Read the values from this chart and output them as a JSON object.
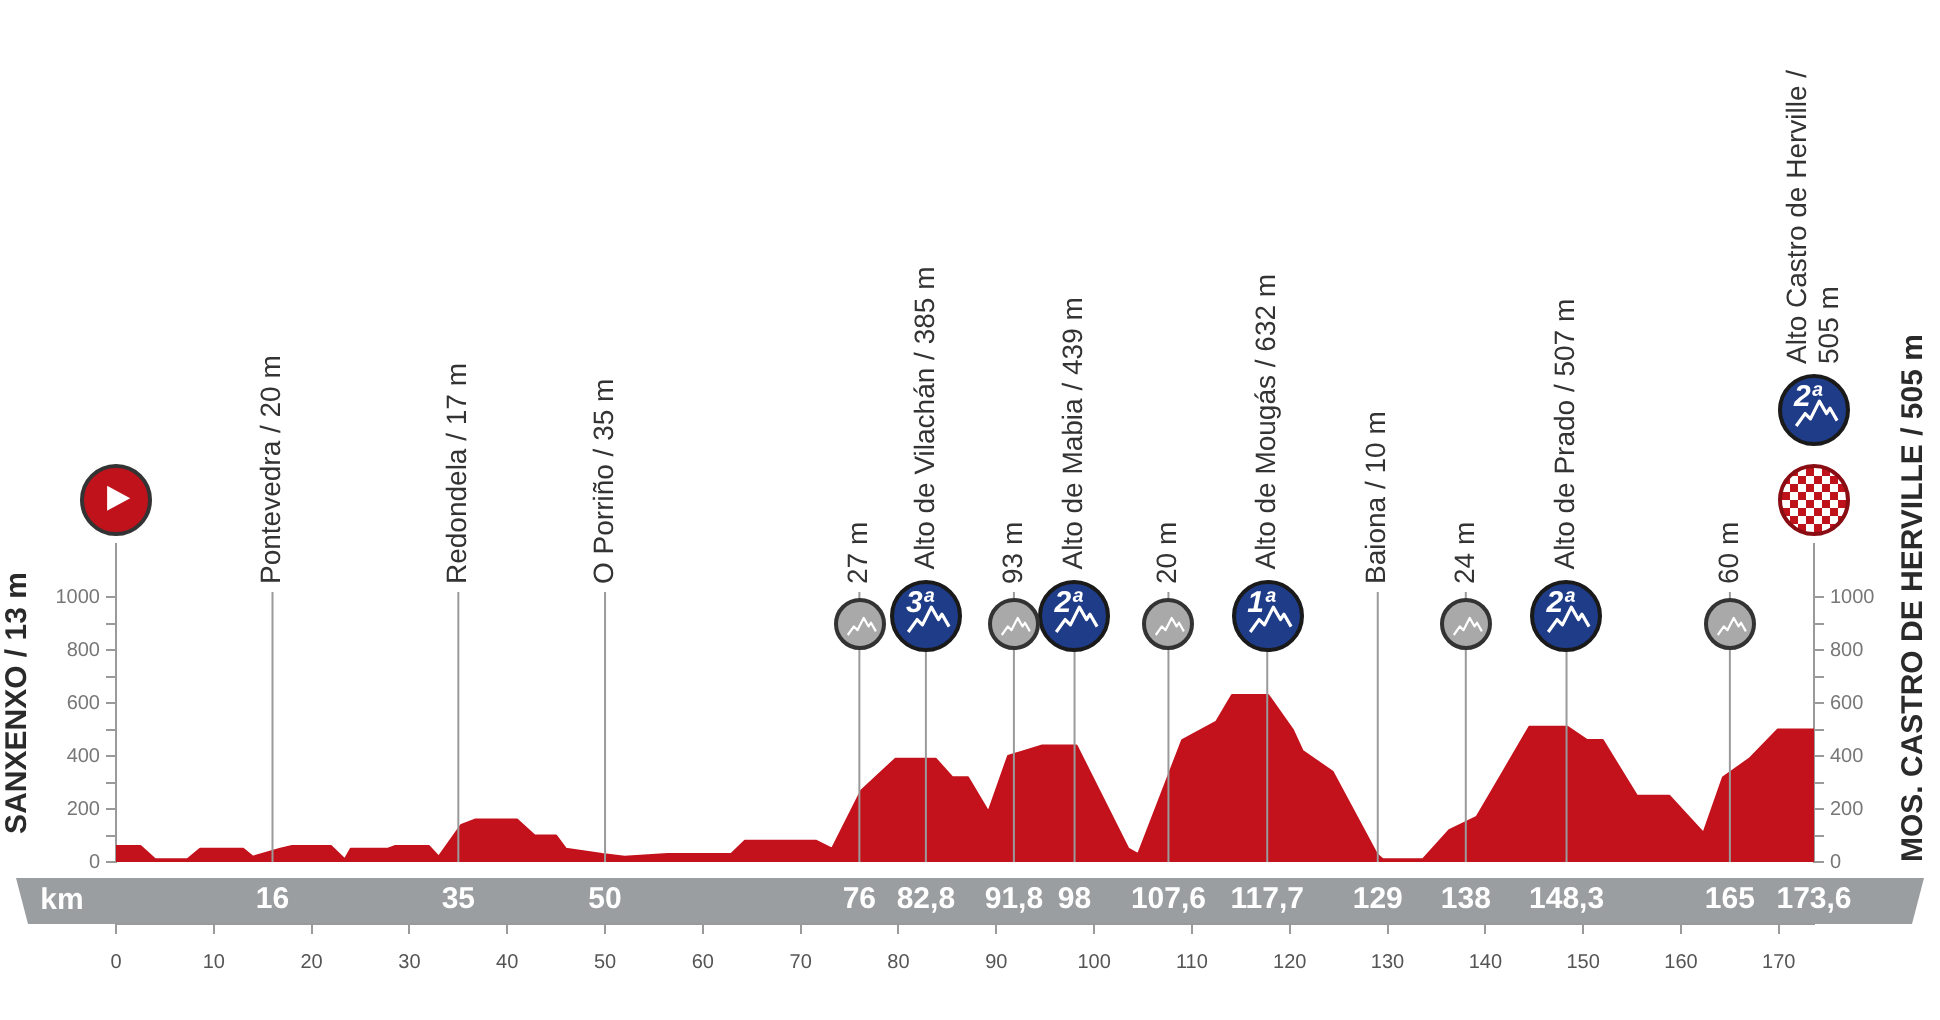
{
  "chart_data": {
    "type": "area",
    "color": "#c3121c",
    "x": [
      0,
      2.5,
      4,
      7.3,
      8.6,
      13,
      14,
      16.8,
      18,
      22,
      23.4,
      24,
      27.8,
      28.5,
      32,
      33,
      35.3,
      36.7,
      41,
      42.8,
      45,
      46,
      49.7,
      52,
      56.4,
      62.9,
      64.3,
      68.2,
      71.6,
      73.2,
      76.2,
      79.7,
      83.8,
      85.5,
      87.1,
      89.2,
      91.2,
      94.7,
      98.2,
      103.5,
      104.5,
      109,
      112.5,
      114.1,
      117.8,
      120.3,
      121.3,
      124.4,
      128.9,
      129.5,
      133.6,
      136.3,
      139.1,
      141.8,
      144.5,
      148.4,
      150.4,
      152,
      155.5,
      158.8,
      162.3,
      164.3,
      167,
      169.9,
      173.6
    ],
    "values": [
      60,
      60,
      10,
      10,
      50,
      50,
      20,
      50,
      60,
      60,
      10,
      50,
      50,
      60,
      60,
      20,
      140,
      160,
      160,
      100,
      100,
      50,
      30,
      20,
      30,
      30,
      80,
      80,
      80,
      50,
      270,
      390,
      390,
      320,
      320,
      190,
      400,
      440,
      440,
      50,
      30,
      460,
      530,
      630,
      630,
      500,
      420,
      340,
      30,
      10,
      10,
      120,
      170,
      340,
      510,
      510,
      460,
      460,
      250,
      250,
      110,
      320,
      390,
      500,
      500
    ],
    "ylabel": "SANXENXO / 13 m",
    "y2label": "MOS. CASTRO DE HERVILLE / 505 m",
    "x2label": "km",
    "xlim": [
      0,
      173.6
    ],
    "xticks": [
      0,
      10,
      20,
      30,
      40,
      50,
      60,
      70,
      80,
      90,
      100,
      110,
      120,
      130,
      140,
      150,
      160,
      170
    ],
    "x2lim": [
      0,
      173.6
    ],
    "x2ticks": [
      16,
      35,
      50,
      76,
      {
        "value": 82.8,
        "label": "82,8"
      },
      {
        "value": 91.8,
        "label": "91,8"
      },
      98,
      {
        "value": 107.6,
        "label": "107,6"
      },
      {
        "value": 117.7,
        "label": "117,7"
      },
      129,
      138,
      {
        "value": 148.3,
        "label": "148,3"
      },
      165,
      {
        "value": 173.6,
        "label": "173,6"
      }
    ],
    "ylim": [
      0,
      1200
    ],
    "yticks": [
      0,
      {
        "value": 100,
        "label": null
      },
      200,
      {
        "value": 300,
        "label": null
      },
      400,
      {
        "value": 500,
        "label": null
      },
      600,
      {
        "value": 700,
        "label": null
      },
      800,
      {
        "value": 900,
        "label": null
      },
      1000
    ],
    "y2lim": [
      0,
      1200
    ],
    "y2ticks": [
      0,
      {
        "value": 100,
        "label": null
      },
      200,
      {
        "value": 300,
        "label": null
      },
      400,
      {
        "value": 500,
        "label": null
      },
      600,
      {
        "value": 700,
        "label": null
      },
      800,
      {
        "value": 900,
        "label": null
      },
      1000
    ],
    "ref_lines": [
      {
        "axis": "x",
        "value": 16,
        "label": "Pontevedra / 20 m",
        "color": "#9a9a9a"
      },
      {
        "axis": "x",
        "value": 35,
        "label": "Redondela / 17 m",
        "color": "#9a9a9a"
      },
      {
        "axis": "x",
        "value": 50,
        "label": "O Porriño / 35 m",
        "color": "#9a9a9a"
      },
      {
        "axis": "x",
        "value": 76,
        "label": "27 m",
        "color": "#9a9a9a"
      },
      {
        "axis": "x",
        "value": 82.8,
        "label": "Alto de Vilachán / 385 m",
        "color": "#9a9a9a"
      },
      {
        "axis": "x",
        "value": 91.8,
        "label": "93 m",
        "color": "#9a9a9a"
      },
      {
        "axis": "x",
        "value": 98,
        "label": "Alto de Mabia / 439 m",
        "color": "#9a9a9a"
      },
      {
        "axis": "x",
        "value": 107.6,
        "label": "20 m",
        "color": "#9a9a9a"
      },
      {
        "axis": "x",
        "value": 117.7,
        "label": "Alto de Mougás / 632 m",
        "color": "#9a9a9a"
      },
      {
        "axis": "x",
        "value": 129,
        "label": "Baiona / 10 m",
        "color": "#9a9a9a"
      },
      {
        "axis": "x",
        "value": 138,
        "label": "24 m",
        "color": "#9a9a9a"
      },
      {
        "axis": "x",
        "value": 148.3,
        "label": "Alto de Prado / 507 m",
        "color": "#9a9a9a"
      },
      {
        "axis": "x",
        "value": 165,
        "label": "60 m",
        "color": "#9a9a9a"
      }
    ],
    "annotations": [
      {
        "text": "3ª",
        "x": 82.8,
        "y": 930
      },
      {
        "text": "2ª",
        "x": 98,
        "y": 930
      },
      {
        "text": "1ª",
        "x": 117.7,
        "y": 930
      },
      {
        "text": "2ª",
        "x": 148.3,
        "y": 930
      },
      "2ª",
      "Alto Castro de Herville / 505 m"
    ]
  }
}
